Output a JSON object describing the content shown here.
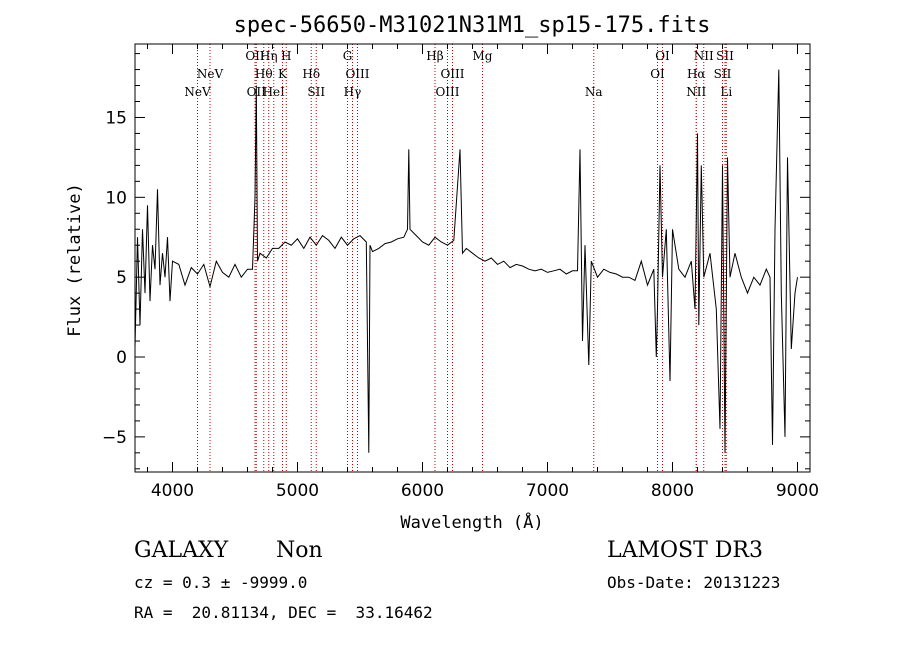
{
  "chart_data": {
    "type": "line",
    "title": "spec-56650-M31021N31M1_sp15-175.fits",
    "xlabel": "Wavelength (Å)",
    "ylabel": "Flux (relative)",
    "xlim": [
      3700,
      9100
    ],
    "ylim": [
      -7.2,
      19.6
    ],
    "xticks": [
      4000,
      5000,
      6000,
      7000,
      8000,
      9000
    ],
    "yticks": [
      -5,
      0,
      5,
      10,
      15
    ],
    "series": [
      {
        "name": "spectrum",
        "x": [
          3700,
          3720,
          3740,
          3760,
          3780,
          3800,
          3820,
          3840,
          3860,
          3880,
          3900,
          3920,
          3940,
          3960,
          3980,
          4000,
          4050,
          4100,
          4150,
          4200,
          4250,
          4300,
          4350,
          4400,
          4450,
          4500,
          4550,
          4600,
          4640,
          4660,
          4670,
          4680,
          4700,
          4750,
          4800,
          4850,
          4900,
          4950,
          5000,
          5050,
          5100,
          5150,
          5200,
          5250,
          5300,
          5350,
          5400,
          5450,
          5500,
          5550,
          5570,
          5580,
          5600,
          5650,
          5700,
          5750,
          5800,
          5850,
          5880,
          5890,
          5900,
          5950,
          6000,
          6050,
          6100,
          6150,
          6200,
          6250,
          6300,
          6320,
          6350,
          6400,
          6450,
          6500,
          6550,
          6600,
          6650,
          6700,
          6750,
          6800,
          6850,
          6900,
          6950,
          7000,
          7050,
          7100,
          7150,
          7200,
          7240,
          7260,
          7280,
          7300,
          7330,
          7350,
          7400,
          7450,
          7500,
          7550,
          7600,
          7650,
          7700,
          7750,
          7800,
          7850,
          7870,
          7880,
          7900,
          7920,
          7950,
          7980,
          8000,
          8050,
          8100,
          8150,
          8180,
          8200,
          8210,
          8230,
          8250,
          8300,
          8350,
          8380,
          8400,
          8420,
          8440,
          8460,
          8500,
          8550,
          8600,
          8650,
          8700,
          8750,
          8780,
          8800,
          8820,
          8850,
          8870,
          8900,
          8920,
          8950,
          8980,
          9000
        ],
        "y": [
          0.6,
          7.5,
          2.0,
          8.0,
          4.0,
          9.5,
          3.5,
          7.0,
          5.5,
          10.5,
          4.5,
          6.5,
          5.0,
          7.5,
          3.5,
          6.0,
          5.8,
          4.5,
          5.6,
          5.2,
          5.8,
          4.4,
          6.0,
          5.3,
          5.0,
          5.8,
          5.0,
          5.5,
          5.5,
          10.0,
          17.0,
          6.0,
          6.5,
          6.2,
          6.8,
          6.8,
          7.2,
          7.0,
          7.4,
          6.8,
          7.5,
          7.0,
          7.6,
          7.3,
          6.8,
          7.5,
          7.0,
          7.4,
          7.6,
          7.2,
          -6.0,
          7.0,
          6.6,
          6.8,
          7.1,
          7.2,
          7.4,
          7.5,
          8.0,
          13.0,
          8.0,
          7.6,
          7.2,
          7.0,
          7.5,
          7.2,
          7.0,
          7.3,
          13.0,
          6.5,
          6.8,
          6.5,
          6.2,
          6.0,
          6.2,
          5.8,
          6.0,
          5.6,
          5.8,
          5.7,
          5.5,
          5.4,
          5.5,
          5.3,
          5.4,
          5.5,
          5.2,
          5.4,
          5.4,
          13.0,
          1.0,
          7.0,
          -0.5,
          6.0,
          5.0,
          5.5,
          5.3,
          5.2,
          5.0,
          5.0,
          4.8,
          6.0,
          4.5,
          5.5,
          0.0,
          3.0,
          12.0,
          5.0,
          8.0,
          -1.5,
          8.0,
          5.5,
          5.0,
          6.0,
          3.0,
          14.0,
          2.0,
          12.0,
          5.0,
          6.5,
          3.0,
          -4.5,
          12.0,
          -6.0,
          12.5,
          5.0,
          6.5,
          5.0,
          4.0,
          5.0,
          4.5,
          5.5,
          5.0,
          -5.5,
          8.0,
          18.0,
          4.0,
          -5.0,
          12.5,
          0.5,
          4.0,
          5.0
        ]
      }
    ],
    "spectral_lines": [
      {
        "label": "NeV",
        "wl": 4200,
        "row": 2
      },
      {
        "label": "NeV",
        "wl": 4300,
        "row": 1
      },
      {
        "label": "OII",
        "wl": 4660,
        "row": 0
      },
      {
        "label": "OII",
        "wl": 4670,
        "row": 2
      },
      {
        "label": "Hη",
        "wl": 4770,
        "row": 0
      },
      {
        "label": "Hθ",
        "wl": 4730,
        "row": 1
      },
      {
        "label": "HeI",
        "wl": 4810,
        "row": 2
      },
      {
        "label": "H",
        "wl": 4910,
        "row": 0
      },
      {
        "label": "K",
        "wl": 4880,
        "row": 1
      },
      {
        "label": "Hδ",
        "wl": 5110,
        "row": 1
      },
      {
        "label": "SII",
        "wl": 5150,
        "row": 2
      },
      {
        "label": "G",
        "wl": 5400,
        "row": 0
      },
      {
        "label": "OIII",
        "wl": 5480,
        "row": 1
      },
      {
        "label": "Hγ",
        "wl": 5440,
        "row": 2
      },
      {
        "label": "Hβ",
        "wl": 6100,
        "row": 0
      },
      {
        "label": "OIII",
        "wl": 6240,
        "row": 1
      },
      {
        "label": "OIII",
        "wl": 6200,
        "row": 2
      },
      {
        "label": "Mg",
        "wl": 6480,
        "row": 0
      },
      {
        "label": "Na",
        "wl": 7370,
        "row": 2
      },
      {
        "label": "OI",
        "wl": 7920,
        "row": 0
      },
      {
        "label": "OI",
        "wl": 7880,
        "row": 1
      },
      {
        "label": "NII",
        "wl": 8250,
        "row": 0
      },
      {
        "label": "Hα",
        "wl": 8190,
        "row": 1
      },
      {
        "label": "NII",
        "wl": 8190,
        "row": 2
      },
      {
        "label": "SII",
        "wl": 8420,
        "row": 0
      },
      {
        "label": "SII",
        "wl": 8400,
        "row": 1
      },
      {
        "label": "Li",
        "wl": 8430,
        "row": 2
      }
    ]
  },
  "info": {
    "object_class": "GALAXY",
    "subclass": "Non",
    "redshift": "cz = 0.3 ± -9999.0",
    "coords": "RA =  20.81134, DEC =  33.16462",
    "survey": "LAMOST DR3",
    "obs_date": "Obs-Date: 20131223"
  },
  "colors": {
    "line_marker": "#c00000",
    "spectrum": "#000000",
    "axes": "#000000",
    "background": "#ffffff"
  }
}
